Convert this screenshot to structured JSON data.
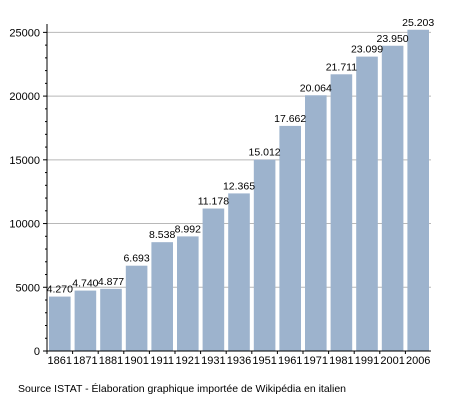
{
  "chart_data": {
    "type": "bar",
    "categories": [
      "1861",
      "1871",
      "1881",
      "1901",
      "1911",
      "1921",
      "1931",
      "1936",
      "1951",
      "1961",
      "1971",
      "1981",
      "1991",
      "2001",
      "2006"
    ],
    "values": [
      4270,
      4740,
      4877,
      6693,
      8538,
      8992,
      11178,
      12365,
      15012,
      17662,
      20064,
      21711,
      23099,
      23950,
      25203
    ],
    "data_labels": [
      "4.270",
      "4.740",
      "4.877",
      "6.693",
      "8.538",
      "8.992",
      "11.178",
      "12.365",
      "15.012",
      "17.662",
      "20.064",
      "21.711",
      "23.099",
      "23.950",
      "25.203"
    ],
    "yticks": [
      0,
      5000,
      10000,
      15000,
      20000,
      25000
    ],
    "ylim": [
      0,
      25500
    ],
    "title": "",
    "xlabel": "",
    "ylabel": "",
    "grid": true,
    "colors": {
      "bar": "#9db3cd",
      "grid": "#b8b8b8",
      "axis": "#000000"
    }
  },
  "footer": {
    "source": "Source ISTAT - Élaboration graphique importée de Wikipédia en italien"
  }
}
